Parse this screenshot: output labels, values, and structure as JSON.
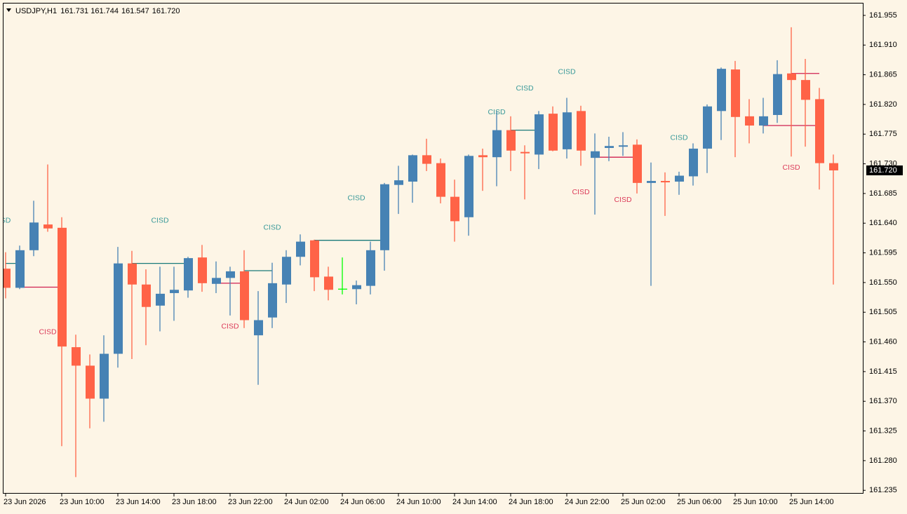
{
  "chart_data": {
    "type": "candlestick",
    "title": "USDJPY,H1",
    "header_values": [
      "161.731",
      "161.744",
      "161.547",
      "161.720"
    ],
    "categories": [
      "23 Jun 2026",
      null,
      null,
      null,
      "23 Jun 10:00",
      null,
      null,
      null,
      "23 Jun 14:00",
      null,
      null,
      null,
      "23 Jun 18:00",
      null,
      null,
      null,
      "23 Jun 22:00",
      null,
      null,
      null,
      "24 Jun 02:00",
      null,
      null,
      null,
      "24 Jun 06:00",
      null,
      null,
      null,
      "24 Jun 10:00",
      null,
      null,
      null,
      "24 Jun 14:00",
      null,
      null,
      null,
      "24 Jun 18:00",
      null,
      null,
      null,
      "24 Jun 22:00",
      null,
      null,
      null,
      "25 Jun 02:00",
      null,
      null,
      null,
      "25 Jun 06:00",
      null,
      null,
      null,
      "25 Jun 10:00",
      null,
      null,
      null,
      "25 Jun 14:00",
      null,
      null,
      null
    ],
    "open": [
      161.571,
      161.542,
      161.599,
      161.638,
      161.633,
      161.452,
      161.424,
      161.374,
      161.442,
      161.579,
      161.547,
      161.515,
      161.534,
      161.538,
      161.588,
      161.548,
      161.557,
      161.567,
      161.47,
      161.497,
      161.547,
      161.589,
      161.614,
      161.559,
      161.54,
      161.54,
      161.545,
      161.599,
      161.698,
      161.703,
      161.743,
      161.731,
      161.68,
      161.649,
      161.743,
      161.74,
      161.781,
      161.748,
      161.744,
      161.806,
      161.752,
      161.81,
      161.739,
      161.754,
      161.756,
      161.759,
      161.701,
      161.704,
      161.703,
      161.711,
      161.753,
      161.81,
      161.873,
      161.802,
      161.788,
      161.804,
      161.867,
      161.857,
      161.828,
      161.731
    ],
    "high": [
      161.596,
      161.606,
      161.674,
      161.729,
      161.649,
      161.471,
      161.441,
      161.47,
      161.604,
      161.598,
      161.57,
      161.574,
      161.574,
      161.589,
      161.607,
      161.582,
      161.574,
      161.599,
      161.537,
      161.58,
      161.599,
      161.623,
      161.615,
      161.574,
      161.588,
      161.553,
      161.612,
      161.701,
      161.727,
      161.744,
      161.768,
      161.738,
      161.706,
      161.744,
      161.753,
      161.81,
      161.802,
      161.758,
      161.81,
      161.817,
      161.83,
      161.818,
      161.776,
      161.771,
      161.778,
      161.767,
      161.732,
      161.717,
      161.718,
      161.761,
      161.82,
      161.876,
      161.886,
      161.828,
      161.83,
      161.887,
      161.937,
      161.889,
      161.845,
      161.744
    ],
    "low": [
      161.526,
      161.54,
      161.59,
      161.627,
      161.302,
      161.255,
      161.329,
      161.339,
      161.421,
      161.434,
      161.455,
      161.476,
      161.492,
      161.527,
      161.536,
      161.534,
      161.5,
      161.481,
      161.395,
      161.481,
      161.519,
      161.576,
      161.537,
      161.523,
      161.532,
      161.517,
      161.532,
      161.568,
      161.654,
      161.671,
      161.719,
      161.67,
      161.612,
      161.621,
      161.689,
      161.696,
      161.719,
      161.676,
      161.722,
      161.749,
      161.738,
      161.727,
      161.653,
      161.734,
      161.742,
      161.685,
      161.545,
      161.651,
      161.683,
      161.697,
      161.716,
      161.766,
      161.74,
      161.761,
      161.776,
      161.792,
      161.741,
      161.756,
      161.691,
      161.547
    ],
    "close": [
      161.542,
      161.599,
      161.641,
      161.632,
      161.453,
      161.424,
      161.374,
      161.442,
      161.579,
      161.547,
      161.513,
      161.533,
      161.539,
      161.587,
      161.549,
      161.557,
      161.567,
      161.493,
      161.493,
      161.549,
      161.589,
      161.612,
      161.558,
      161.539,
      161.54,
      161.546,
      161.599,
      161.699,
      161.705,
      161.743,
      161.73,
      161.68,
      161.643,
      161.742,
      161.74,
      161.781,
      161.75,
      161.746,
      161.805,
      161.75,
      161.808,
      161.75,
      161.749,
      161.757,
      161.758,
      161.701,
      161.704,
      161.702,
      161.712,
      161.753,
      161.817,
      161.874,
      161.801,
      161.788,
      161.802,
      161.866,
      161.857,
      161.827,
      161.731,
      161.72
    ],
    "up_color": "#4682b4",
    "down_color": "#ff6347",
    "doji_color": "#00ff00",
    "ylim": [
      161.231,
      161.973
    ],
    "yticks": [
      {
        "value": 161.955,
        "label": "161.955"
      },
      {
        "value": 161.91,
        "label": "161.910"
      },
      {
        "value": 161.865,
        "label": "161.865"
      },
      {
        "value": 161.82,
        "label": "161.820"
      },
      {
        "value": 161.775,
        "label": "161.775"
      },
      {
        "value": 161.73,
        "label": "161.730"
      },
      {
        "value": 161.685,
        "label": "161.685"
      },
      {
        "value": 161.64,
        "label": "161.640"
      },
      {
        "value": 161.595,
        "label": "161.595"
      },
      {
        "value": 161.55,
        "label": "161.550"
      },
      {
        "value": 161.505,
        "label": "161.505"
      },
      {
        "value": 161.46,
        "label": "161.460"
      },
      {
        "value": 161.415,
        "label": "161.415"
      },
      {
        "value": 161.37,
        "label": "161.370"
      },
      {
        "value": 161.325,
        "label": "161.325"
      },
      {
        "value": 161.28,
        "label": "161.280"
      },
      {
        "value": 161.235,
        "label": "161.235"
      }
    ],
    "current_price": {
      "value": 161.72,
      "label": "161.720"
    },
    "annotations": [
      {
        "text": "SD",
        "x": 0,
        "y": 161.644,
        "color": "#3a9a9a"
      },
      {
        "text": "CISD",
        "x": 3,
        "y": 161.475,
        "color": "#dc3c5a"
      },
      {
        "text": "CISD",
        "x": 11,
        "y": 161.644,
        "color": "#3a9a9a"
      },
      {
        "text": "CISD",
        "x": 16,
        "y": 161.483,
        "color": "#dc3c5a"
      },
      {
        "text": "CISD",
        "x": 19,
        "y": 161.633,
        "color": "#3a9a9a"
      },
      {
        "text": "CISD",
        "x": 25,
        "y": 161.678,
        "color": "#3a9a9a"
      },
      {
        "text": "CISD",
        "x": 35,
        "y": 161.808,
        "color": "#3a9a9a"
      },
      {
        "text": "CISD",
        "x": 37,
        "y": 161.844,
        "color": "#3a9a9a"
      },
      {
        "text": "CISD",
        "x": 40,
        "y": 161.869,
        "color": "#3a9a9a"
      },
      {
        "text": "CISD",
        "x": 41,
        "y": 161.687,
        "color": "#dc3c5a"
      },
      {
        "text": "CISD",
        "x": 44,
        "y": 161.675,
        "color": "#dc3c5a"
      },
      {
        "text": "CISD",
        "x": 48,
        "y": 161.769,
        "color": "#3a9a9a"
      },
      {
        "text": "CISD",
        "x": 56,
        "y": 161.724,
        "color": "#dc3c5a"
      }
    ],
    "levels": [
      {
        "from": 0,
        "to": 1,
        "price": 161.579,
        "color": "#1a7a7a"
      },
      {
        "from": 1,
        "to": 4,
        "price": 161.543,
        "color": "#d02050"
      },
      {
        "from": 9,
        "to": 13,
        "price": 161.579,
        "color": "#1a7a7a"
      },
      {
        "from": 15,
        "to": 17,
        "price": 161.549,
        "color": "#d02050"
      },
      {
        "from": 17,
        "to": 19,
        "price": 161.568,
        "color": "#1a7a7a"
      },
      {
        "from": 22,
        "to": 27,
        "price": 161.614,
        "color": "#1a7a7a"
      },
      {
        "from": 36,
        "to": 38,
        "price": 161.781,
        "color": "#1a7a7a"
      },
      {
        "from": 42,
        "to": 45,
        "price": 161.74,
        "color": "#d02050"
      },
      {
        "from": 54,
        "to": 58,
        "price": 161.788,
        "color": "#d02050"
      },
      {
        "from": 56,
        "to": 58,
        "price": 161.867,
        "color": "#d02050"
      }
    ]
  }
}
